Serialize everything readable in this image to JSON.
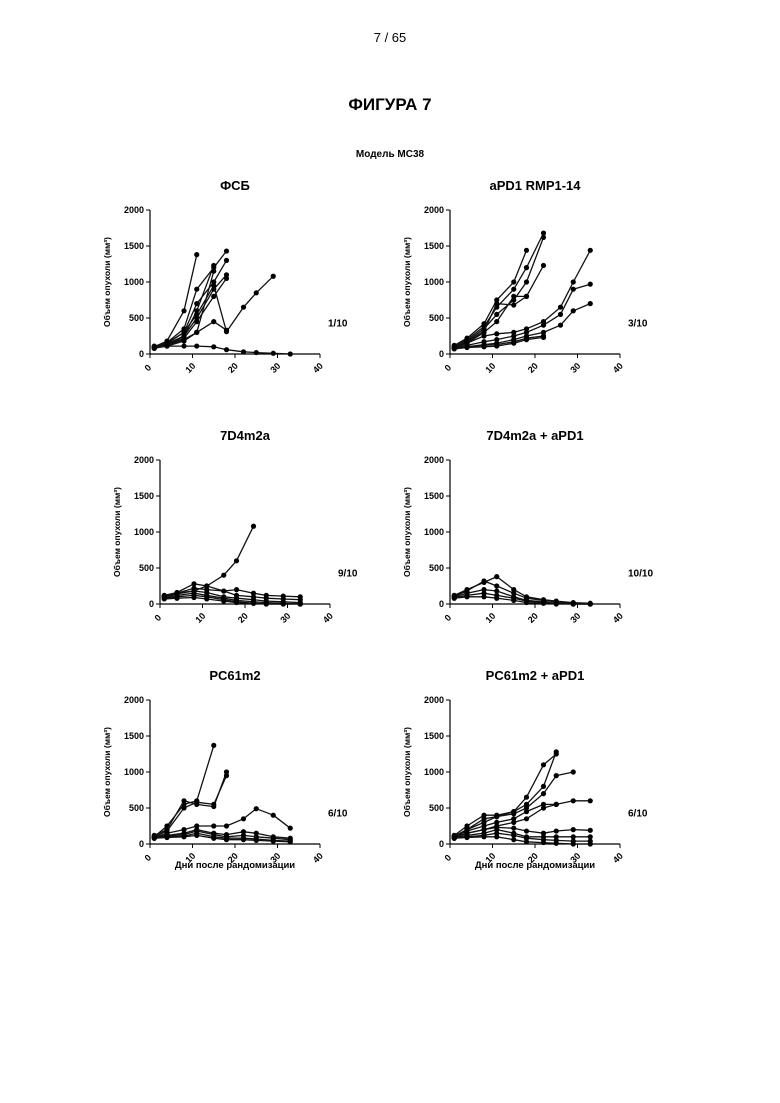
{
  "page_number": "7 / 65",
  "figure_title": "ФИГУРА 7",
  "model_title": "Модель МС38",
  "chart_data": [
    {
      "type": "line",
      "title": "ФСБ",
      "ylabel": "Объем опухоли (мм³)",
      "xlabel": "",
      "xlim": [
        0,
        40
      ],
      "ylim": [
        0,
        2000
      ],
      "x_ticks": [
        0,
        10,
        20,
        30,
        40
      ],
      "y_ticks": [
        0,
        500,
        1000,
        1500,
        2000
      ],
      "annotation": "1/10",
      "series": [
        {
          "x": [
            1,
            4,
            8,
            11
          ],
          "y": [
            100,
            180,
            600,
            1380
          ]
        },
        {
          "x": [
            1,
            4,
            8,
            11,
            15,
            18
          ],
          "y": [
            90,
            160,
            350,
            900,
            1200,
            1430
          ]
        },
        {
          "x": [
            1,
            4,
            8,
            11,
            15,
            18
          ],
          "y": [
            80,
            150,
            300,
            700,
            1000,
            1300
          ]
        },
        {
          "x": [
            1,
            4,
            8,
            11,
            15
          ],
          "y": [
            90,
            140,
            250,
            600,
            1230
          ]
        },
        {
          "x": [
            1,
            4,
            8,
            11,
            15,
            18
          ],
          "y": [
            80,
            120,
            250,
            500,
            900,
            1100
          ]
        },
        {
          "x": [
            1,
            4,
            8,
            11,
            15,
            18
          ],
          "y": [
            100,
            130,
            220,
            450,
            800,
            1050
          ]
        },
        {
          "x": [
            1,
            4,
            8,
            11,
            15,
            18,
            22,
            25,
            29
          ],
          "y": [
            110,
            150,
            300,
            550,
            950,
            310,
            650,
            850,
            1080
          ]
        },
        {
          "x": [
            1,
            4,
            8,
            11,
            15
          ],
          "y": [
            90,
            120,
            200,
            300,
            1150
          ]
        },
        {
          "x": [
            1,
            4,
            8,
            11,
            15,
            18
          ],
          "y": [
            80,
            110,
            180,
            300,
            450,
            330
          ]
        },
        {
          "x": [
            1,
            4,
            8,
            11,
            15,
            18,
            22,
            25,
            29,
            33
          ],
          "y": [
            100,
            110,
            110,
            110,
            100,
            60,
            30,
            20,
            10,
            0
          ]
        }
      ]
    },
    {
      "type": "line",
      "title": "aPD1 RMP1-14",
      "ylabel": "Объем опухоли (мм³)",
      "xlabel": "",
      "xlim": [
        0,
        40
      ],
      "ylim": [
        0,
        2000
      ],
      "x_ticks": [
        0,
        10,
        20,
        30,
        40
      ],
      "y_ticks": [
        0,
        500,
        1000,
        1500,
        2000
      ],
      "annotation": "3/10",
      "series": [
        {
          "x": [
            1,
            4,
            8,
            11,
            15,
            18
          ],
          "y": [
            120,
            220,
            420,
            750,
            1000,
            1440
          ]
        },
        {
          "x": [
            1,
            4,
            8,
            11,
            15,
            18,
            22
          ],
          "y": [
            100,
            200,
            380,
            650,
            900,
            1200,
            1680
          ]
        },
        {
          "x": [
            1,
            4,
            8,
            11,
            15,
            18,
            22
          ],
          "y": [
            90,
            180,
            350,
            550,
            750,
            1000,
            1620
          ]
        },
        {
          "x": [
            1,
            4,
            8,
            11,
            15,
            18,
            22
          ],
          "y": [
            80,
            150,
            300,
            450,
            800,
            800,
            1230
          ]
        },
        {
          "x": [
            1,
            4,
            8,
            11,
            15,
            18
          ],
          "y": [
            100,
            170,
            320,
            700,
            680,
            800
          ]
        },
        {
          "x": [
            1,
            4,
            8,
            11,
            15,
            18,
            22,
            26,
            29,
            33
          ],
          "y": [
            100,
            150,
            250,
            280,
            300,
            350,
            450,
            650,
            1000,
            1440
          ]
        },
        {
          "x": [
            1,
            4,
            8,
            11,
            15,
            18,
            22,
            26,
            29,
            33
          ],
          "y": [
            90,
            120,
            170,
            200,
            250,
            300,
            400,
            550,
            900,
            970
          ]
        },
        {
          "x": [
            1,
            4,
            8,
            11,
            15,
            18,
            22,
            26,
            29,
            33
          ],
          "y": [
            80,
            100,
            130,
            150,
            200,
            250,
            300,
            400,
            600,
            700
          ]
        },
        {
          "x": [
            1,
            4,
            8,
            11,
            15,
            18,
            22
          ],
          "y": [
            80,
            100,
            120,
            130,
            170,
            220,
            250
          ]
        },
        {
          "x": [
            1,
            4,
            8,
            11,
            15,
            18,
            22
          ],
          "y": [
            70,
            90,
            100,
            110,
            150,
            200,
            230
          ]
        }
      ]
    },
    {
      "type": "line",
      "title": "7D4m2a",
      "ylabel": "Объем опухоли (мм³)",
      "xlabel": "",
      "xlim": [
        0,
        40
      ],
      "ylim": [
        0,
        2000
      ],
      "x_ticks": [
        0,
        10,
        20,
        30,
        40
      ],
      "y_ticks": [
        0,
        500,
        1000,
        1500,
        2000
      ],
      "annotation": "9/10",
      "series": [
        {
          "x": [
            1,
            4,
            8,
            11,
            15,
            18,
            22
          ],
          "y": [
            100,
            150,
            180,
            250,
            400,
            600,
            1080
          ]
        },
        {
          "x": [
            1,
            4,
            8,
            11,
            15,
            18,
            22,
            25,
            29,
            33
          ],
          "y": [
            120,
            160,
            280,
            250,
            180,
            200,
            150,
            120,
            110,
            100
          ]
        },
        {
          "x": [
            1,
            4,
            8,
            11,
            15,
            18,
            22,
            25,
            29,
            33
          ],
          "y": [
            110,
            150,
            220,
            200,
            180,
            120,
            100,
            80,
            70,
            60
          ]
        },
        {
          "x": [
            1,
            4,
            8,
            11,
            15,
            18,
            22,
            25,
            29,
            33
          ],
          "y": [
            100,
            140,
            180,
            160,
            100,
            80,
            60,
            40,
            30,
            20
          ]
        },
        {
          "x": [
            1,
            4,
            8,
            11,
            15,
            18,
            22,
            25,
            29,
            33
          ],
          "y": [
            90,
            120,
            150,
            120,
            80,
            50,
            30,
            20,
            10,
            0
          ]
        },
        {
          "x": [
            1,
            4,
            8,
            11,
            15,
            18,
            22,
            25,
            29,
            33
          ],
          "y": [
            80,
            100,
            120,
            100,
            60,
            30,
            10,
            0,
            0,
            0
          ]
        },
        {
          "x": [
            1,
            4,
            8,
            11,
            15,
            18,
            22,
            25,
            29,
            33
          ],
          "y": [
            70,
            80,
            90,
            70,
            40,
            20,
            10,
            0,
            0,
            0
          ]
        }
      ]
    },
    {
      "type": "line",
      "title": "7D4m2a + aPD1",
      "ylabel": "Объем опухоли (мм³)",
      "xlabel": "",
      "xlim": [
        0,
        40
      ],
      "ylim": [
        0,
        2000
      ],
      "x_ticks": [
        0,
        10,
        20,
        30,
        40
      ],
      "y_ticks": [
        0,
        500,
        1000,
        1500,
        2000
      ],
      "annotation": "10/10",
      "series": [
        {
          "x": [
            1,
            4,
            8,
            11,
            15,
            18,
            22,
            25,
            29,
            33
          ],
          "y": [
            120,
            200,
            300,
            380,
            200,
            100,
            60,
            40,
            20,
            10
          ]
        },
        {
          "x": [
            1,
            4,
            8,
            11,
            15,
            18,
            22,
            25,
            29,
            33
          ],
          "y": [
            110,
            180,
            320,
            250,
            150,
            80,
            50,
            30,
            10,
            0
          ]
        },
        {
          "x": [
            1,
            4,
            8,
            11,
            15,
            18,
            22,
            25,
            29,
            33
          ],
          "y": [
            100,
            150,
            200,
            180,
            100,
            50,
            30,
            10,
            0,
            0
          ]
        },
        {
          "x": [
            1,
            4,
            8,
            11,
            15,
            18,
            22,
            25,
            29,
            33
          ],
          "y": [
            90,
            120,
            150,
            120,
            80,
            40,
            20,
            10,
            0,
            0
          ]
        },
        {
          "x": [
            1,
            4,
            8,
            11,
            15,
            18,
            22,
            25,
            29,
            33
          ],
          "y": [
            80,
            100,
            100,
            80,
            50,
            20,
            10,
            0,
            0,
            0
          ]
        }
      ]
    },
    {
      "type": "line",
      "title": "PC61m2",
      "ylabel": "Объем опухоли (мм³)",
      "xlabel": "Дни после рандомизации",
      "xlim": [
        0,
        40
      ],
      "ylim": [
        0,
        2000
      ],
      "x_ticks": [
        0,
        10,
        20,
        30,
        40
      ],
      "y_ticks": [
        0,
        500,
        1000,
        1500,
        2000
      ],
      "annotation": "6/10",
      "series": [
        {
          "x": [
            1,
            4,
            8,
            11,
            15
          ],
          "y": [
            100,
            250,
            550,
            600,
            1370
          ]
        },
        {
          "x": [
            1,
            4,
            8,
            11,
            15,
            18
          ],
          "y": [
            120,
            200,
            600,
            550,
            520,
            1000
          ]
        },
        {
          "x": [
            1,
            4,
            8,
            11,
            15,
            18
          ],
          "y": [
            100,
            180,
            500,
            580,
            550,
            950
          ]
        },
        {
          "x": [
            1,
            4,
            8,
            11,
            15,
            18,
            22,
            25,
            29,
            33
          ],
          "y": [
            90,
            150,
            200,
            250,
            250,
            250,
            350,
            490,
            400,
            220
          ]
        },
        {
          "x": [
            1,
            4,
            8,
            11,
            15,
            18,
            22,
            25,
            29,
            33
          ],
          "y": [
            100,
            120,
            150,
            200,
            150,
            130,
            170,
            150,
            100,
            80
          ]
        },
        {
          "x": [
            1,
            4,
            8,
            11,
            15,
            18,
            22,
            25,
            29,
            33
          ],
          "y": [
            90,
            110,
            130,
            180,
            130,
            100,
            120,
            100,
            80,
            60
          ]
        },
        {
          "x": [
            1,
            4,
            8,
            11,
            15,
            18,
            22,
            25,
            29,
            33
          ],
          "y": [
            80,
            100,
            110,
            150,
            100,
            80,
            80,
            70,
            50,
            40
          ]
        },
        {
          "x": [
            1,
            4,
            8,
            11,
            15,
            18,
            22,
            25,
            29,
            33
          ],
          "y": [
            80,
            90,
            100,
            120,
            80,
            60,
            60,
            50,
            40,
            30
          ]
        }
      ]
    },
    {
      "type": "line",
      "title": "PC61m2 + aPD1",
      "ylabel": "Объем опухоли (мм³)",
      "xlabel": "Дни после рандомизации",
      "xlim": [
        0,
        40
      ],
      "ylim": [
        0,
        2000
      ],
      "x_ticks": [
        0,
        10,
        20,
        30,
        40
      ],
      "y_ticks": [
        0,
        500,
        1000,
        1500,
        2000
      ],
      "annotation": "6/10",
      "series": [
        {
          "x": [
            1,
            4,
            8,
            11,
            15,
            18,
            22,
            25
          ],
          "y": [
            100,
            200,
            300,
            380,
            450,
            550,
            800,
            1280
          ]
        },
        {
          "x": [
            1,
            4,
            8,
            11,
            15,
            18,
            22,
            25
          ],
          "y": [
            120,
            250,
            400,
            400,
            450,
            650,
            1100,
            1250
          ]
        },
        {
          "x": [
            1,
            4,
            8,
            11,
            15,
            18,
            22,
            25,
            29
          ],
          "y": [
            110,
            200,
            350,
            380,
            420,
            500,
            700,
            950,
            1000
          ]
        },
        {
          "x": [
            1,
            4,
            8,
            11,
            15,
            18,
            22,
            25,
            29,
            33
          ],
          "y": [
            100,
            180,
            250,
            300,
            350,
            450,
            550,
            550,
            600,
            600
          ]
        },
        {
          "x": [
            1,
            4,
            8,
            11,
            15,
            18,
            22,
            25
          ],
          "y": [
            90,
            150,
            200,
            250,
            300,
            350,
            500,
            550
          ]
        },
        {
          "x": [
            1,
            4,
            8,
            11,
            15,
            18,
            22,
            25,
            29,
            33
          ],
          "y": [
            100,
            150,
            200,
            230,
            220,
            180,
            150,
            180,
            200,
            190
          ]
        },
        {
          "x": [
            1,
            4,
            8,
            11,
            15,
            18,
            22,
            25,
            29,
            33
          ],
          "y": [
            90,
            120,
            150,
            200,
            150,
            100,
            100,
            100,
            100,
            100
          ]
        },
        {
          "x": [
            1,
            4,
            8,
            11,
            15,
            18,
            22,
            25,
            29,
            33
          ],
          "y": [
            80,
            100,
            120,
            150,
            120,
            80,
            60,
            50,
            40,
            40
          ]
        },
        {
          "x": [
            1,
            4,
            8,
            11,
            15,
            18,
            22,
            25,
            29,
            33
          ],
          "y": [
            80,
            90,
            100,
            100,
            60,
            30,
            20,
            10,
            0,
            0
          ]
        }
      ]
    }
  ]
}
